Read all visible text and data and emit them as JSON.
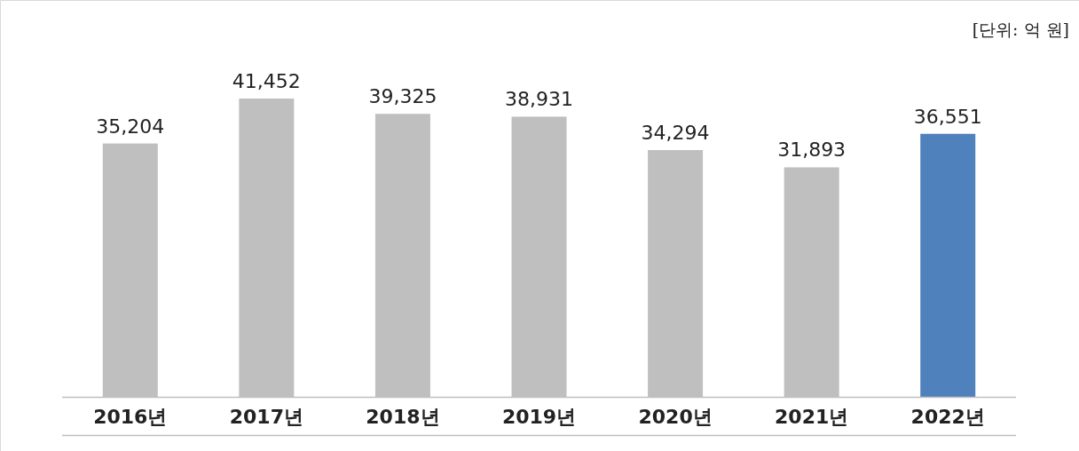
{
  "chart_data": {
    "type": "bar",
    "categories": [
      "2016년",
      "2017년",
      "2018년",
      "2019년",
      "2020년",
      "2021년",
      "2022년"
    ],
    "values": [
      35204,
      41452,
      39325,
      38931,
      34294,
      31893,
      36551
    ],
    "colors": [
      "#bfbfbf",
      "#bfbfbf",
      "#bfbfbf",
      "#bfbfbf",
      "#bfbfbf",
      "#bfbfbf",
      "#4f81bd"
    ],
    "value_labels": [
      "35,204",
      "41,452",
      "39,325",
      "38,931",
      "34,294",
      "31,893",
      "36,551"
    ],
    "annotations": [
      "[단위: 억 원]"
    ]
  }
}
